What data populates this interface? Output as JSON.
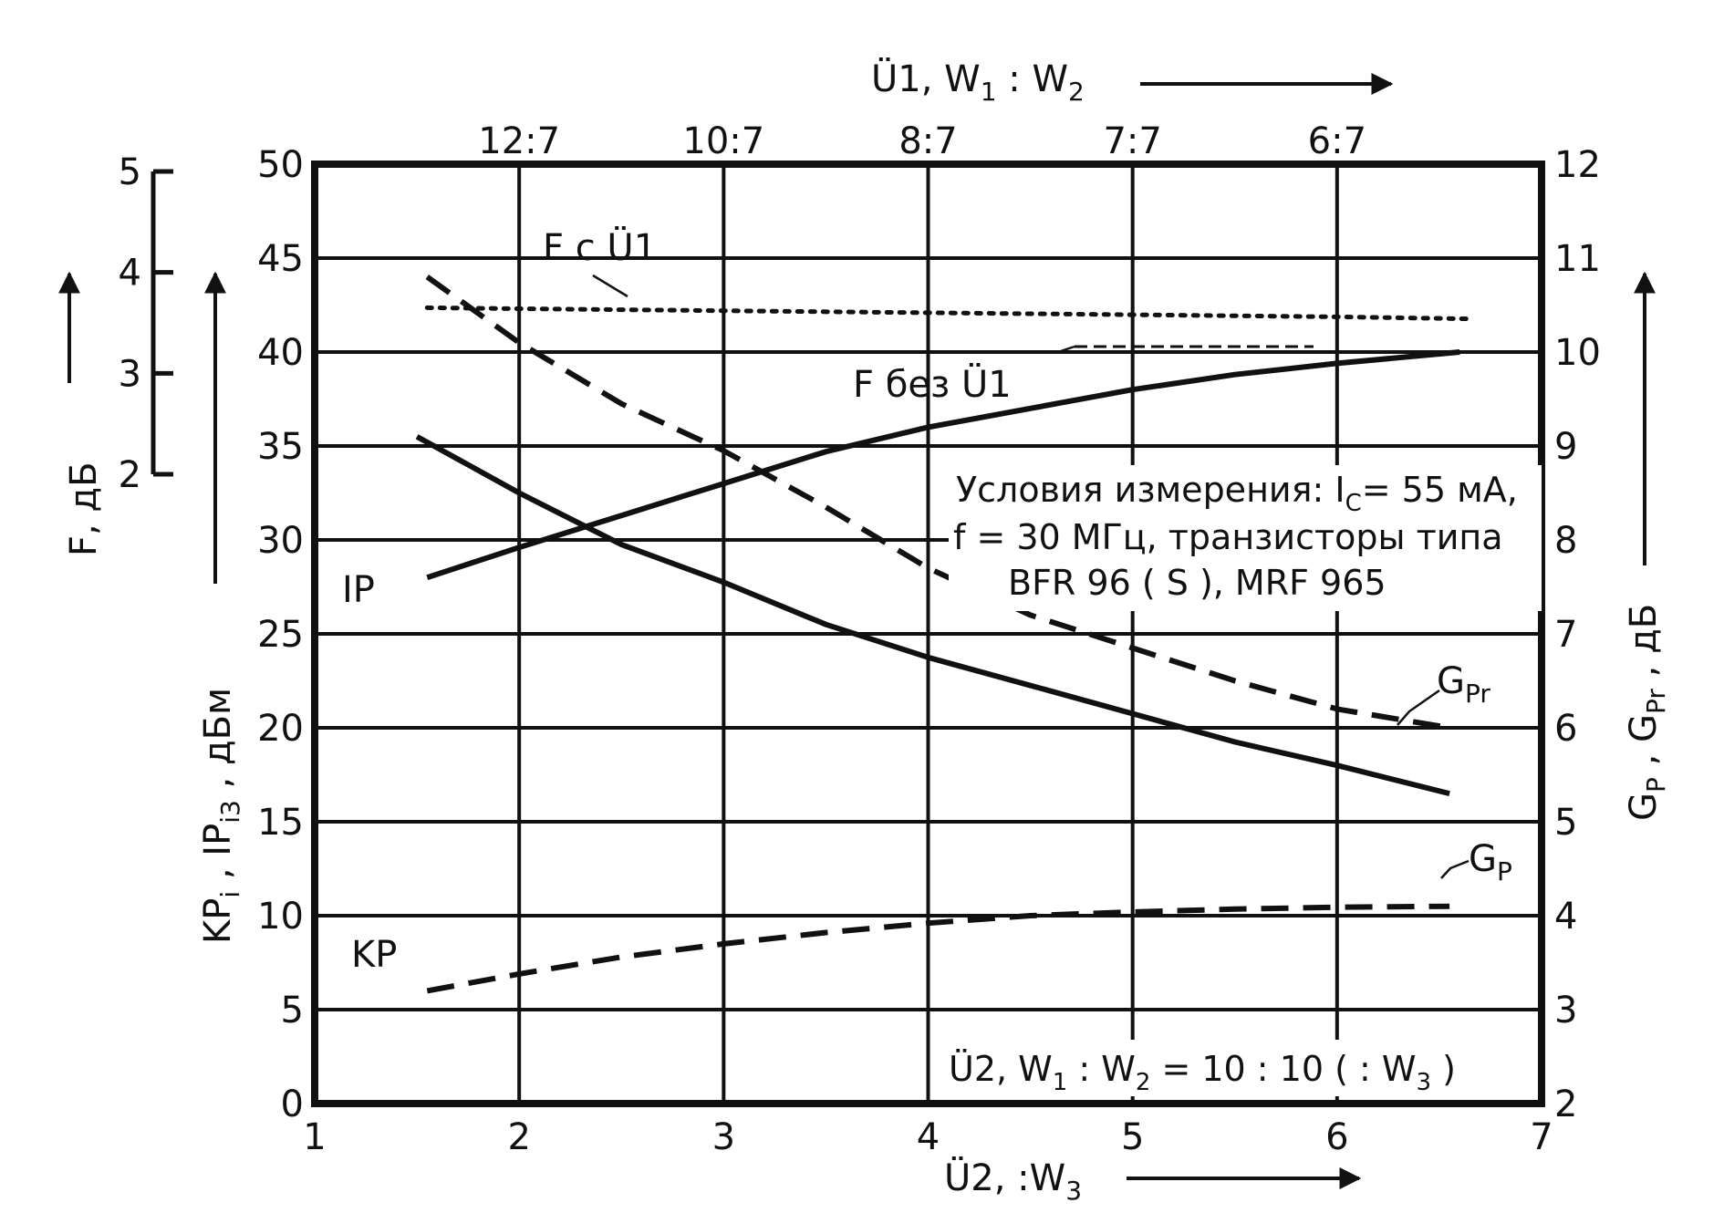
{
  "chart_data": {
    "type": "line",
    "x_bottom": {
      "label_main": "Ü2,  :W",
      "label_sub": "3",
      "range": [
        1,
        7
      ],
      "ticks": [
        "1",
        "2",
        "3",
        "4",
        "5",
        "6",
        "7"
      ]
    },
    "x_top": {
      "label_main": "Ü1,   W",
      "label_sub1": "1",
      "label_mid": " : W",
      "label_sub2": "2",
      "ticks": [
        {
          "label": "12:7",
          "at": 2
        },
        {
          "label": "10:7",
          "at": 3
        },
        {
          "label": "8:7",
          "at": 4
        },
        {
          "label": "7:7",
          "at": 5
        },
        {
          "label": "6:7",
          "at": 6
        }
      ]
    },
    "y_left_main": {
      "label_parts": [
        "KP",
        "i",
        " ,  IP",
        "i3",
        " ,  дБм"
      ],
      "range": [
        0,
        50
      ],
      "ticks": [
        "0",
        "5",
        "10",
        "15",
        "20",
        "25",
        "30",
        "35",
        "40",
        "45",
        "50"
      ]
    },
    "y_left_f": {
      "label": "F,  дБ",
      "range": [
        2,
        5
      ],
      "ticks": [
        "2",
        "3",
        "4",
        "5"
      ]
    },
    "y_right": {
      "label_parts": [
        "G",
        "P",
        " ,  G",
        "Pr",
        " , дБ"
      ],
      "range": [
        2,
        12
      ],
      "ticks": [
        "2",
        "3",
        "4",
        "5",
        "6",
        "7",
        "8",
        "9",
        "10",
        "11",
        "12"
      ]
    },
    "series": [
      {
        "name": "IP",
        "style": "solid",
        "axis": "left",
        "x": [
          1.55,
          2.0,
          2.5,
          3.0,
          3.5,
          4.0,
          4.5,
          5.0,
          5.5,
          6.0,
          6.6
        ],
        "y": [
          28.0,
          29.6,
          31.3,
          33.0,
          34.7,
          36.0,
          37.0,
          38.0,
          38.8,
          39.4,
          40.0
        ]
      },
      {
        "name": "G",
        "name_sub": "P",
        "style": "solid",
        "axis": "right",
        "x": [
          1.5,
          2.0,
          2.5,
          3.0,
          3.5,
          4.0,
          4.5,
          5.0,
          5.5,
          6.0,
          6.55
        ],
        "y": [
          9.1,
          8.5,
          7.95,
          7.55,
          7.1,
          6.75,
          6.45,
          6.15,
          5.85,
          5.6,
          5.3
        ]
      },
      {
        "name": "G",
        "name_sub": "Pr",
        "style": "dashed",
        "axis": "right",
        "x": [
          1.55,
          2.0,
          2.5,
          3.0,
          3.5,
          4.0,
          4.5,
          5.0,
          5.5,
          6.0,
          6.55
        ],
        "y": [
          10.8,
          10.1,
          9.45,
          8.95,
          8.35,
          7.7,
          7.2,
          6.85,
          6.5,
          6.2,
          6.0
        ]
      },
      {
        "name": "KP",
        "style": "dashed",
        "axis": "left",
        "x": [
          1.55,
          2.0,
          2.5,
          3.0,
          3.5,
          4.0,
          4.5,
          5.0,
          5.5,
          6.0,
          6.55
        ],
        "y": [
          6.0,
          6.9,
          7.8,
          8.5,
          9.1,
          9.6,
          10.0,
          10.2,
          10.35,
          10.45,
          10.5
        ]
      },
      {
        "name": "F c Ü1",
        "style": "dotted",
        "axis": "left_f",
        "x": [
          1.55,
          2.0,
          3.0,
          4.0,
          5.0,
          6.0,
          6.65
        ],
        "y": [
          3.65,
          3.64,
          3.62,
          3.6,
          3.58,
          3.56,
          3.54
        ]
      }
    ],
    "annotations": {
      "f_bez": "F без  Ü1",
      "conditions_line1": "Условия  измерения: I",
      "conditions_line1_sub": "C",
      "conditions_line1_end": "= 55 мА,",
      "conditions_line2": "f = 30 МГц,  транзисторы  типа",
      "conditions_line3": "BFR 96 ( S ),  MRF 965",
      "bottom_note_a": "Ü2,  W",
      "bottom_note_sub1": "1",
      "bottom_note_b": " : W",
      "bottom_note_sub2": "2",
      "bottom_note_c": " = 10 : 10 ( : W",
      "bottom_note_sub3": "3",
      "bottom_note_d": " )"
    },
    "grid": true
  }
}
